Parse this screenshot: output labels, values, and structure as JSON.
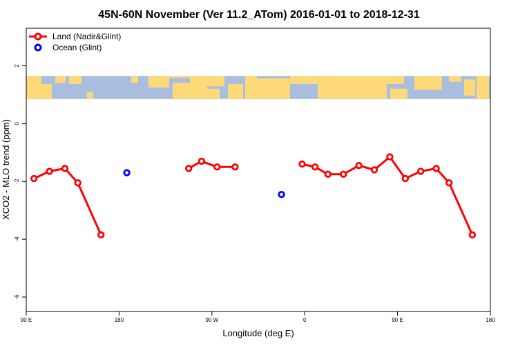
{
  "chart_data": {
    "type": "line",
    "title": "45N-60N November (Ver 11.2_ATom)   2016-01-01 to 2018-12-31",
    "xlabel": "Longitude (deg E)",
    "ylabel": "XCO2 - MLO trend (ppm)",
    "xlim": [
      90,
      540
    ],
    "ylim": [
      -6.5,
      3.3
    ],
    "x_ticks": [
      {
        "value": 90,
        "label": "90 E"
      },
      {
        "value": 180,
        "label": "180"
      },
      {
        "value": 270,
        "label": "90 W"
      },
      {
        "value": 360,
        "label": "0"
      },
      {
        "value": 450,
        "label": "90 E"
      },
      {
        "value": 540,
        "label": "180"
      }
    ],
    "y_ticks": [
      {
        "value": 2,
        "label": "2"
      },
      {
        "value": 0,
        "label": "0"
      },
      {
        "value": -2,
        "label": "-2"
      },
      {
        "value": -4,
        "label": "-4"
      },
      {
        "value": -6,
        "label": "-6"
      }
    ],
    "map_band": {
      "ymin": 0.85,
      "ymax": 1.65,
      "land_color": "#fdd979",
      "ocean_color": "#a9bedf"
    },
    "legend_position": "top-left",
    "series": [
      {
        "name": "Land (Nadir&Glint)",
        "color": "#ff0000",
        "segments": [
          [
            [
              97.5,
              -1.9
            ],
            [
              112.5,
              -1.65
            ],
            [
              127.5,
              -1.55
            ],
            [
              140,
              -2.05
            ],
            [
              162.5,
              -3.85
            ]
          ],
          [
            [
              247.5,
              -1.55
            ],
            [
              260,
              -1.3
            ],
            [
              275,
              -1.5
            ],
            [
              292.5,
              -1.5
            ]
          ],
          [
            [
              357.5,
              -1.4
            ],
            [
              370,
              -1.5
            ],
            [
              382.5,
              -1.75
            ],
            [
              397.5,
              -1.75
            ],
            [
              412.5,
              -1.45
            ],
            [
              427.5,
              -1.6
            ],
            [
              442.5,
              -1.15
            ],
            [
              457.5,
              -1.9
            ],
            [
              472.5,
              -1.65
            ],
            [
              487.5,
              -1.55
            ],
            [
              500,
              -2.05
            ],
            [
              522.5,
              -3.85
            ]
          ]
        ]
      },
      {
        "name": "Ocean (Glint)",
        "color": "#0000ff",
        "segments": [
          [
            [
              187.5,
              -1.7
            ]
          ],
          [
            [
              337.5,
              -2.45
            ]
          ]
        ]
      }
    ]
  }
}
